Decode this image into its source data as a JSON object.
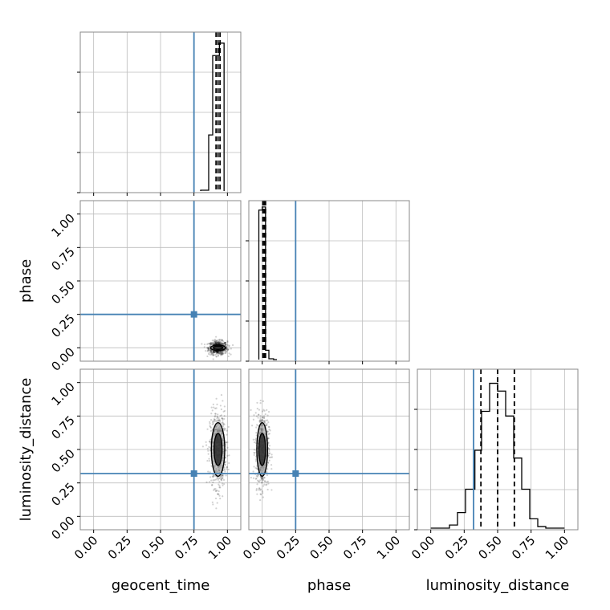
{
  "chart_data": {
    "type": "corner",
    "parameters": [
      "geocent_time",
      "phase",
      "luminosity_distance"
    ],
    "axis_range": [
      -0.1,
      1.1
    ],
    "tick_labels": [
      "0.00",
      "0.25",
      "0.50",
      "0.75",
      "1.00"
    ],
    "tick_values": [
      0.0,
      0.25,
      0.5,
      0.75,
      1.0
    ],
    "grid": true,
    "colors": {
      "truth": "#4682b4",
      "histogram": "#000000",
      "frame": "#888888",
      "grid": "#bdbdbd",
      "density": "#000000"
    },
    "truths": {
      "geocent_time": 0.75,
      "phase": 0.25,
      "luminosity_distance": 0.32
    },
    "histograms": {
      "geocent_time": {
        "bin_edges": [
          0.8,
          0.86,
          0.89,
          0.94,
          0.975
        ],
        "heights": [
          0.005,
          0.36,
          0.87,
          0.95
        ],
        "quantiles": [
          0.915,
          0.93,
          0.945
        ]
      },
      "phase": {
        "bin_edges": [
          -0.025,
          0.0,
          0.025,
          0.05,
          0.085,
          0.11
        ],
        "heights": [
          0.96,
          0.98,
          0.06,
          0.005,
          0.0
        ],
        "quantiles": [
          0.005,
          0.015,
          0.025
        ]
      },
      "luminosity_distance": {
        "bin_edges": [
          0.0,
          0.14,
          0.2,
          0.26,
          0.33,
          0.38,
          0.44,
          0.5,
          0.56,
          0.62,
          0.68,
          0.74,
          0.8,
          0.86,
          1.0
        ],
        "heights": [
          0.0,
          0.02,
          0.1,
          0.25,
          0.5,
          0.75,
          0.93,
          0.88,
          0.72,
          0.45,
          0.25,
          0.06,
          0.01,
          0.0
        ],
        "quantiles": [
          0.375,
          0.5,
          0.625
        ]
      }
    },
    "joint": {
      "phase_vs_geocent_time": {
        "center": [
          0.93,
          0.0
        ],
        "spread": [
          0.035,
          0.025
        ],
        "contour_levels": [
          [
            0.055,
            0.02
          ],
          [
            0.035,
            0.012
          ]
        ]
      },
      "luminosity_distance_vs_geocent_time": {
        "center": [
          0.93,
          0.5
        ],
        "spread": [
          0.03,
          0.14
        ],
        "contour_levels": [
          [
            0.05,
            0.2
          ],
          [
            0.03,
            0.12
          ]
        ]
      },
      "luminosity_distance_vs_phase": {
        "center": [
          0.0,
          0.5
        ],
        "spread": [
          0.025,
          0.14
        ],
        "contour_levels": [
          [
            0.04,
            0.2
          ],
          [
            0.025,
            0.12
          ]
        ]
      }
    }
  }
}
